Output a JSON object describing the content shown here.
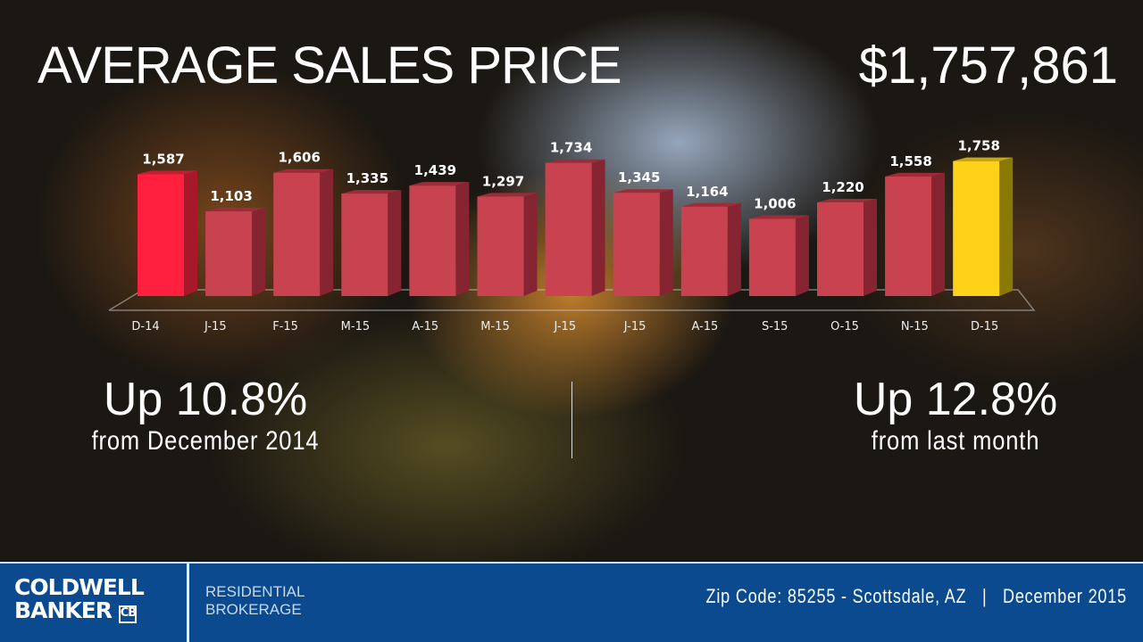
{
  "header": {
    "title": "AVERAGE SALES PRICE",
    "total": "$1,757,861"
  },
  "chart_data": {
    "type": "bar",
    "categories": [
      "D-14",
      "J-15",
      "F-15",
      "M-15",
      "A-15",
      "M-15",
      "J-15",
      "J-15",
      "A-15",
      "S-15",
      "O-15",
      "N-15",
      "D-15"
    ],
    "values": [
      1587,
      1103,
      1606,
      1335,
      1439,
      1297,
      1734,
      1345,
      1164,
      1006,
      1220,
      1558,
      1758
    ],
    "data_labels": [
      "1,587",
      "1,103",
      "1,606",
      "1,335",
      "1,439",
      "1,297",
      "1,734",
      "1,345",
      "1,164",
      "1,006",
      "1,220",
      "1,558",
      "1,758"
    ],
    "ylim": [
      0,
      1800
    ],
    "grid": false,
    "style": "3d-column",
    "colors": {
      "first": "#ff2040",
      "default": "#c8434f",
      "last": "#ffd21a"
    }
  },
  "stats": {
    "left": {
      "big": "Up 10.8%",
      "small": "from December 2014"
    },
    "right": {
      "big": "Up 12.8%",
      "small": "from last month"
    }
  },
  "footer": {
    "logo_line1": "COLDWELL",
    "logo_line2": "BANKER",
    "sub_line1": "RESIDENTIAL",
    "sub_line2": "BROKERAGE",
    "info": "Zip Code: 85255 - Scottsdale, AZ   |   December 2015",
    "color": "#0b4a8e"
  }
}
